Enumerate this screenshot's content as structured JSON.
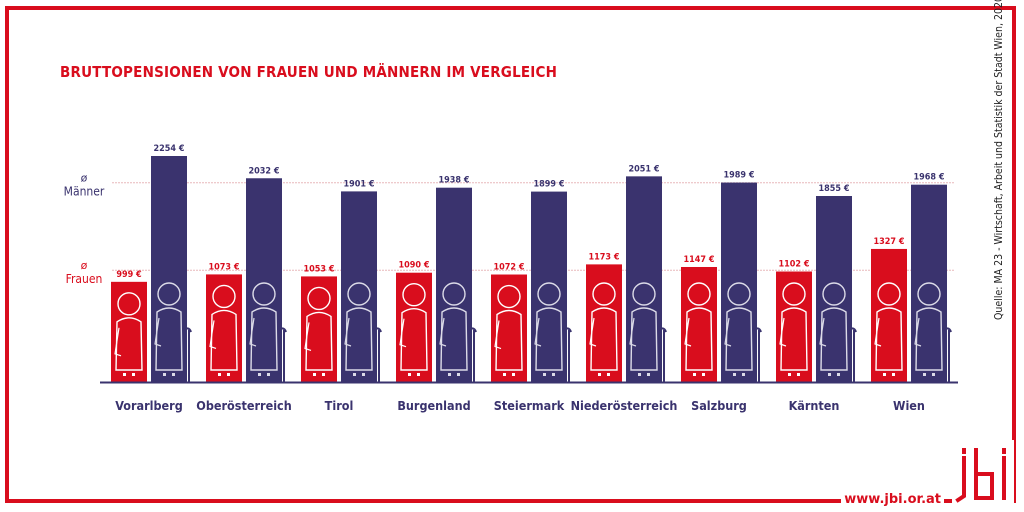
{
  "title": "BRUTTOPENSIONEN VON FRAUEN UND MÄNNERN IM VERGLEICH",
  "source": "Quelle: MA 23 - Wirtschaft, Arbeit und Statistik der Stadt Wien, 2020",
  "url": "www.jbi.or.at",
  "logo_text": "jbi",
  "colors": {
    "women": "#d90d1d",
    "men": "#3a336e",
    "frame": "#d90d1d",
    "avg_line": "#e8b8bc"
  },
  "icons": {
    "women": "grandmother-figure-icon",
    "men": "grandfather-figure-icon"
  },
  "chart_data": {
    "type": "bar",
    "categories": [
      "Vorarlberg",
      "Oberösterreich",
      "Tirol",
      "Burgenland",
      "Steiermark",
      "Niederösterreich",
      "Salzburg",
      "Kärnten",
      "Wien"
    ],
    "series": [
      {
        "key": "women",
        "values": [
          999,
          1073,
          1053,
          1090,
          1072,
          1173,
          1147,
          1102,
          1327
        ],
        "labels": [
          "999 €",
          "1073 €",
          "1053 €",
          "1090 €",
          "1072 €",
          "1173 €",
          "1147 €",
          "1102 €",
          "1327 €"
        ]
      },
      {
        "key": "men",
        "values": [
          2254,
          2032,
          1901,
          1938,
          1899,
          2051,
          1989,
          1855,
          1968
        ],
        "labels": [
          "2254 €",
          "2032 €",
          "1901 €",
          "1938 €",
          "1899 €",
          "2051 €",
          "1989 €",
          "1855 €",
          "1968 €"
        ]
      }
    ],
    "averages": [
      {
        "symbol": "ø",
        "label": "Männer",
        "key": "men"
      },
      {
        "symbol": "ø",
        "label": "Frauen",
        "key": "women"
      }
    ],
    "ylim": [
      0,
      2254
    ],
    "grid": false,
    "legend": "none"
  }
}
